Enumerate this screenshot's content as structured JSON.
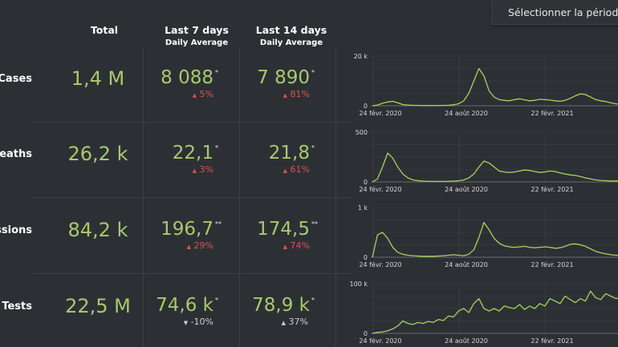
{
  "period_button": "Sélectionner la période",
  "headers": {
    "total": "Total",
    "last7": "Last 7 days",
    "last7_sub": "Daily Average",
    "last14": "Last 14 days",
    "last14_sub": "Daily Average"
  },
  "rows": [
    {
      "label": "Cases",
      "total": "1,4 M",
      "avg7": "8 088",
      "avg7_mark": "*",
      "chg7_icon": "▲",
      "chg7": "5%",
      "avg14": "7 890",
      "avg14_mark": "*",
      "chg14_icon": "▲",
      "chg14": "81%"
    },
    {
      "label": "Deaths",
      "total": "26,2 k",
      "avg7": "22,1",
      "avg7_mark": "*",
      "chg7_icon": "▲",
      "chg7": "3%",
      "avg14": "21,8",
      "avg14_mark": "*",
      "chg14_icon": "▲",
      "chg14": "61%"
    },
    {
      "label": "Admissions",
      "total": "84,2 k",
      "avg7": "196,7",
      "avg7_mark": "**",
      "chg7_icon": "▲",
      "chg7": "29%",
      "avg14": "174,5",
      "avg14_mark": "**",
      "chg14_icon": "▲",
      "chg14": "74%"
    },
    {
      "label": "Tests",
      "total": "22,5 M",
      "avg7": "74,6 k",
      "avg7_mark": "*",
      "chg7_icon": "▼",
      "chg7": "-10%",
      "avg14": "78,9 k",
      "avg14_mark": "*",
      "chg14_icon": "▲",
      "chg14": "37%"
    }
  ],
  "colors": {
    "value": "#a9c96a",
    "increase": "#d9534f",
    "neutral": "#cfcfcf",
    "line": "#a9d25c"
  },
  "chart_data": [
    {
      "type": "line",
      "ylabel": "",
      "yticks": [
        "0",
        "20 k"
      ],
      "ylim": [
        0,
        20000
      ],
      "xticks": [
        "24 févr. 2020",
        "24 août 2020",
        "22 févr. 2021"
      ],
      "values": [
        0,
        300,
        1000,
        1500,
        1800,
        1200,
        500,
        300,
        200,
        150,
        120,
        100,
        100,
        120,
        150,
        200,
        400,
        800,
        2000,
        5000,
        10000,
        15000,
        12000,
        6000,
        3500,
        2500,
        2200,
        2000,
        2500,
        2800,
        2400,
        2000,
        2200,
        2600,
        2500,
        2300,
        2000,
        1800,
        2200,
        3000,
        4000,
        4800,
        4500,
        3500,
        2500,
        2000,
        1700,
        1200,
        800,
        600,
        800
      ]
    },
    {
      "type": "line",
      "ylabel": "",
      "yticks": [
        "0",
        "500"
      ],
      "ylim": [
        0,
        500
      ],
      "xticks": [
        "24 févr. 2020",
        "24 août 2020",
        "22 févr. 2021"
      ],
      "values": [
        0,
        30,
        150,
        290,
        240,
        150,
        80,
        40,
        20,
        12,
        8,
        5,
        5,
        5,
        5,
        6,
        8,
        12,
        20,
        40,
        80,
        150,
        210,
        190,
        150,
        110,
        100,
        95,
        100,
        110,
        120,
        115,
        105,
        95,
        100,
        110,
        105,
        90,
        80,
        70,
        65,
        55,
        40,
        30,
        20,
        15,
        12,
        10,
        10,
        12,
        15
      ]
    },
    {
      "type": "line",
      "ylabel": "",
      "yticks": [
        "0",
        "1 k"
      ],
      "ylim": [
        0,
        1000
      ],
      "xticks": [
        "24 févr. 2020",
        "24 août 2020",
        "22 févr. 2021"
      ],
      "values": [
        0,
        450,
        500,
        380,
        200,
        100,
        60,
        40,
        30,
        25,
        20,
        20,
        20,
        25,
        30,
        40,
        50,
        40,
        30,
        60,
        150,
        400,
        700,
        550,
        380,
        280,
        230,
        210,
        200,
        210,
        220,
        200,
        190,
        200,
        210,
        200,
        180,
        190,
        220,
        260,
        270,
        250,
        220,
        170,
        120,
        90,
        70,
        50,
        40,
        40,
        45
      ]
    },
    {
      "type": "line",
      "ylabel": "",
      "yticks": [
        "0",
        "100 k"
      ],
      "ylim": [
        0,
        100000
      ],
      "xticks": [
        "24 févr. 2020",
        "24 août 2020",
        "22 févr. 2021"
      ],
      "values": [
        0,
        2000,
        3000,
        5000,
        9000,
        15000,
        25000,
        20000,
        18000,
        22000,
        20000,
        24000,
        22000,
        28000,
        26000,
        35000,
        33000,
        45000,
        50000,
        42000,
        60000,
        70000,
        50000,
        45000,
        50000,
        45000,
        55000,
        52000,
        50000,
        58000,
        48000,
        55000,
        50000,
        60000,
        55000,
        70000,
        65000,
        60000,
        75000,
        68000,
        62000,
        70000,
        65000,
        85000,
        72000,
        68000,
        80000,
        75000,
        70000,
        72000,
        75000
      ]
    }
  ]
}
